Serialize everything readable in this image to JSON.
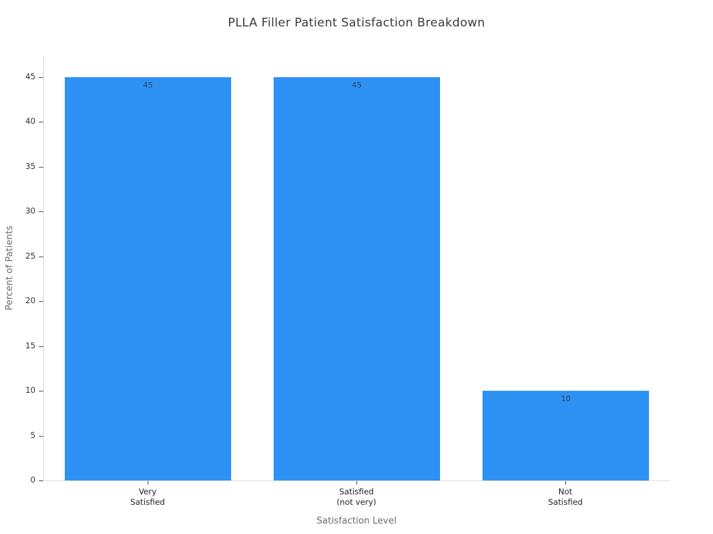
{
  "chart_data": {
    "type": "bar",
    "title": "PLLA Filler Patient Satisfaction Breakdown",
    "xlabel": "Satisfaction Level",
    "ylabel": "Percent of Patients",
    "categories": [
      [
        "Very",
        "Satisfied"
      ],
      [
        "Satisfied",
        "(not very)"
      ],
      [
        "Not",
        "Satisfied"
      ]
    ],
    "values": [
      45,
      45,
      10
    ],
    "bar_labels": [
      "45",
      "45",
      "10"
    ],
    "yticks": [
      0,
      5,
      10,
      15,
      20,
      25,
      30,
      35,
      40,
      45
    ],
    "ylim": [
      0,
      47.4
    ],
    "grid": false,
    "legend": "none",
    "colors": {
      "bar": "#2e92f5",
      "title_text": "#3a3a3a",
      "tick_text": "#333333",
      "category_text": "#222222",
      "axis_title_text": "#6b6b6b",
      "spine": "#d6d6d6",
      "value_label_text": "#2a3f5f"
    }
  }
}
